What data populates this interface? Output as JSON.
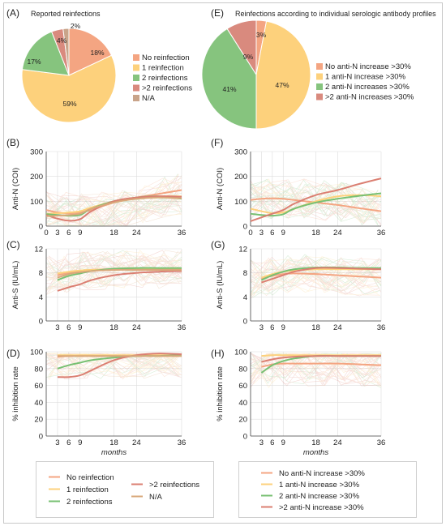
{
  "panels": {
    "A": {
      "label": "(A)",
      "title": "Reported reinfections"
    },
    "E": {
      "label": "(E)",
      "title": "Reinfections according to individual serologic antibody profiles"
    },
    "B": {
      "label": "(B)"
    },
    "C": {
      "label": "(C)"
    },
    "D": {
      "label": "(D)"
    },
    "F": {
      "label": "(F)"
    },
    "G": {
      "label": "(G)"
    },
    "H": {
      "label": "(H)"
    }
  },
  "colors": {
    "c0": "#F4A582",
    "c1": "#FDD17C",
    "c2": "#86C47E",
    "c3": "#D98A7E",
    "c4": "#C9A48A",
    "line0": "#F4A582",
    "line1": "#FDD17C",
    "line2": "#78C073",
    "line3": "#DB7F72",
    "line4": "#D8A87A"
  },
  "chart_data": [
    {
      "id": "A",
      "type": "pie",
      "labels": [
        "No reinfection",
        "1 reinfection",
        "2 reinfections",
        ">2 reinfections",
        "N/A"
      ],
      "values": [
        18,
        59,
        17,
        4,
        2
      ],
      "value_labels": [
        "18%",
        "59%",
        "17%",
        "4%",
        "2%"
      ],
      "legend": "right"
    },
    {
      "id": "E",
      "type": "pie",
      "labels": [
        "No anti-N increase >30%",
        "1 anti-N increase >30%",
        "2 anti-N increases >30%",
        ">2 anti-N increases >30%"
      ],
      "values": [
        3,
        47,
        41,
        9
      ],
      "value_labels": [
        "3%",
        "47%",
        "41%",
        "9%"
      ],
      "legend": "right"
    },
    {
      "id": "B",
      "type": "line",
      "ylabel": "Anti-N (COI)",
      "xlabel": "",
      "xticks": [
        0,
        3,
        6,
        9,
        18,
        24,
        36
      ],
      "yticks": [
        0,
        100,
        200,
        300
      ],
      "xlim": [
        0,
        36
      ],
      "ylim": [
        0,
        300
      ],
      "grid": true,
      "series": [
        {
          "name": "No reinfection",
          "x": [
            0,
            3,
            6,
            9,
            12,
            18,
            24,
            30,
            36
          ],
          "values": [
            65,
            55,
            52,
            55,
            65,
            95,
            115,
            130,
            145
          ]
        },
        {
          "name": "1 reinfection",
          "x": [
            0,
            3,
            6,
            9,
            12,
            18,
            24,
            30,
            36
          ],
          "values": [
            50,
            52,
            55,
            60,
            75,
            100,
            115,
            120,
            120
          ]
        },
        {
          "name": "2 reinfections",
          "x": [
            0,
            3,
            6,
            9,
            12,
            18,
            24,
            30,
            36
          ],
          "values": [
            48,
            45,
            42,
            45,
            70,
            100,
            115,
            120,
            110
          ]
        },
        {
          "name": ">2 reinfections",
          "x": [
            0,
            3,
            6,
            9,
            12,
            18,
            24,
            30,
            36
          ],
          "values": [
            45,
            30,
            22,
            28,
            60,
            100,
            115,
            120,
            118
          ]
        },
        {
          "name": "N/A",
          "x": [
            0,
            3,
            6,
            9,
            12,
            18,
            24,
            30,
            36
          ],
          "values": [
            40,
            42,
            45,
            50,
            70,
            95,
            110,
            115,
            112
          ]
        }
      ]
    },
    {
      "id": "C",
      "type": "line",
      "ylabel": "Anti-S (lU/mL)",
      "xlabel": "",
      "xticks": [
        3,
        6,
        9,
        18,
        24,
        36
      ],
      "yticks": [
        0,
        4,
        8,
        12
      ],
      "xlim": [
        0,
        36
      ],
      "ylim": [
        0,
        12
      ],
      "grid": true,
      "series": [
        {
          "name": "No reinfection",
          "x": [
            3,
            6,
            9,
            12,
            18,
            24,
            30,
            36
          ],
          "values": [
            7.6,
            8.0,
            8.3,
            8.5,
            8.6,
            8.6,
            8.6,
            8.6
          ]
        },
        {
          "name": "1 reinfection",
          "x": [
            3,
            6,
            9,
            12,
            18,
            24,
            30,
            36
          ],
          "values": [
            7.9,
            8.2,
            8.4,
            8.5,
            8.6,
            8.6,
            8.6,
            8.6
          ]
        },
        {
          "name": "2 reinfections",
          "x": [
            3,
            6,
            9,
            12,
            18,
            24,
            30,
            36
          ],
          "values": [
            6.8,
            7.5,
            7.9,
            8.3,
            8.7,
            8.8,
            8.8,
            8.8
          ]
        },
        {
          "name": ">2 reinfections",
          "x": [
            3,
            6,
            9,
            12,
            18,
            24,
            30,
            36
          ],
          "values": [
            5.0,
            5.6,
            6.1,
            6.8,
            7.6,
            8.0,
            8.2,
            8.3
          ]
        },
        {
          "name": "N/A",
          "x": [
            3,
            6,
            9,
            12,
            18,
            24,
            30,
            36
          ],
          "values": [
            7.2,
            7.8,
            8.1,
            8.3,
            8.5,
            8.5,
            8.5,
            8.5
          ]
        }
      ]
    },
    {
      "id": "D",
      "type": "line",
      "ylabel": "% inhibition rate",
      "xlabel": "months",
      "xticks": [
        3,
        6,
        9,
        18,
        24,
        36
      ],
      "yticks": [
        0,
        20,
        40,
        60,
        80,
        100
      ],
      "xlim": [
        0,
        36
      ],
      "ylim": [
        0,
        100
      ],
      "grid": true,
      "series": [
        {
          "name": "No reinfection",
          "x": [
            3,
            6,
            9,
            12,
            18,
            24,
            30,
            36
          ],
          "values": [
            94,
            95,
            95,
            95,
            95,
            95,
            95,
            95
          ]
        },
        {
          "name": "1 reinfection",
          "x": [
            3,
            6,
            9,
            12,
            18,
            24,
            30,
            36
          ],
          "values": [
            96,
            96,
            96,
            96,
            96,
            96,
            96,
            96
          ]
        },
        {
          "name": "2 reinfections",
          "x": [
            3,
            6,
            9,
            12,
            18,
            24,
            30,
            36
          ],
          "values": [
            80,
            84,
            87,
            90,
            93,
            95,
            95,
            96
          ]
        },
        {
          "name": ">2 reinfections",
          "x": [
            3,
            6,
            9,
            12,
            18,
            24,
            30,
            36
          ],
          "values": [
            70,
            70,
            72,
            78,
            90,
            96,
            98,
            97
          ]
        },
        {
          "name": "N/A",
          "x": [
            3,
            6,
            9,
            12,
            18,
            24,
            30,
            36
          ],
          "values": [
            95,
            95,
            95,
            95,
            95,
            95,
            95,
            95
          ]
        }
      ]
    },
    {
      "id": "F",
      "type": "line",
      "ylabel": "Anti-N (COI)",
      "xlabel": "",
      "xticks": [
        0,
        3,
        6,
        9,
        18,
        24,
        36
      ],
      "yticks": [
        0,
        100,
        200,
        300
      ],
      "xlim": [
        0,
        36
      ],
      "ylim": [
        0,
        300
      ],
      "grid": true,
      "series": [
        {
          "name": "No anti-N increase >30%",
          "x": [
            0,
            3,
            6,
            9,
            12,
            18,
            24,
            30,
            36
          ],
          "values": [
            105,
            110,
            112,
            110,
            105,
            95,
            85,
            72,
            60
          ]
        },
        {
          "name": "1 anti-N increase >30%",
          "x": [
            0,
            3,
            6,
            9,
            12,
            18,
            24,
            30,
            36
          ],
          "values": [
            70,
            60,
            52,
            55,
            70,
            100,
            120,
            125,
            120
          ]
        },
        {
          "name": "2 anti-N increases >30%",
          "x": [
            0,
            3,
            6,
            9,
            12,
            18,
            24,
            30,
            36
          ],
          "values": [
            50,
            45,
            42,
            48,
            70,
            95,
            110,
            122,
            132
          ]
        },
        {
          "name": ">2 anti-N increases >30%",
          "x": [
            0,
            3,
            6,
            9,
            12,
            18,
            24,
            30,
            36
          ],
          "values": [
            20,
            35,
            50,
            65,
            90,
            125,
            145,
            170,
            192
          ]
        }
      ]
    },
    {
      "id": "G",
      "type": "line",
      "ylabel": "Anti-S (lU/mL)",
      "xlabel": "",
      "xticks": [
        3,
        6,
        9,
        18,
        24,
        36
      ],
      "yticks": [
        0,
        4,
        8,
        12
      ],
      "xlim": [
        0,
        36
      ],
      "ylim": [
        0,
        12
      ],
      "grid": true,
      "series": [
        {
          "name": "No anti-N increase >30%",
          "x": [
            3,
            6,
            9,
            12,
            18,
            24,
            30,
            36
          ],
          "values": [
            7.0,
            7.5,
            7.8,
            7.9,
            7.8,
            7.6,
            7.4,
            7.2
          ]
        },
        {
          "name": "1 anti-N increase >30%",
          "x": [
            3,
            6,
            9,
            12,
            18,
            24,
            30,
            36
          ],
          "values": [
            7.2,
            7.8,
            8.2,
            8.4,
            8.6,
            8.6,
            8.6,
            8.6
          ]
        },
        {
          "name": "2 anti-N increases >30%",
          "x": [
            3,
            6,
            9,
            12,
            18,
            24,
            30,
            36
          ],
          "values": [
            6.8,
            7.6,
            8.2,
            8.6,
            8.9,
            8.9,
            8.8,
            8.8
          ]
        },
        {
          "name": ">2 anti-N increases >30%",
          "x": [
            3,
            6,
            9,
            12,
            18,
            24,
            30,
            36
          ],
          "values": [
            6.4,
            7.0,
            7.6,
            8.2,
            8.8,
            8.8,
            8.7,
            8.6
          ]
        }
      ]
    },
    {
      "id": "H",
      "type": "line",
      "ylabel": "% inhibition rate",
      "xlabel": "months",
      "xticks": [
        3,
        6,
        9,
        18,
        24,
        36
      ],
      "yticks": [
        0,
        20,
        40,
        60,
        80,
        100
      ],
      "xlim": [
        0,
        36
      ],
      "ylim": [
        0,
        100
      ],
      "grid": true,
      "series": [
        {
          "name": "No anti-N increase >30%",
          "x": [
            3,
            6,
            9,
            12,
            18,
            24,
            30,
            36
          ],
          "values": [
            82,
            85,
            86,
            86,
            86,
            86,
            85,
            84
          ]
        },
        {
          "name": "1 anti-N increase >30%",
          "x": [
            3,
            6,
            9,
            12,
            18,
            24,
            30,
            36
          ],
          "values": [
            95,
            96,
            96,
            96,
            96,
            96,
            96,
            96
          ]
        },
        {
          "name": "2 anti-N increases >30%",
          "x": [
            3,
            6,
            9,
            12,
            18,
            24,
            30,
            36
          ],
          "values": [
            75,
            84,
            89,
            92,
            95,
            95,
            95,
            95
          ]
        },
        {
          "name": ">2 anti-N increases >30%",
          "x": [
            3,
            6,
            9,
            12,
            18,
            24,
            30,
            36
          ],
          "values": [
            88,
            91,
            93,
            94,
            95,
            95,
            95,
            95
          ]
        }
      ]
    }
  ],
  "legends": {
    "left": [
      "No reinfection",
      "1 reinfection",
      "2 reinfections",
      ">2 reinfections",
      "N/A"
    ],
    "right": [
      "No anti-N increase >30%",
      "1 anti-N increase >30%",
      "2 anti-N increase >30%",
      ">2 anti-N increase >30%"
    ]
  }
}
